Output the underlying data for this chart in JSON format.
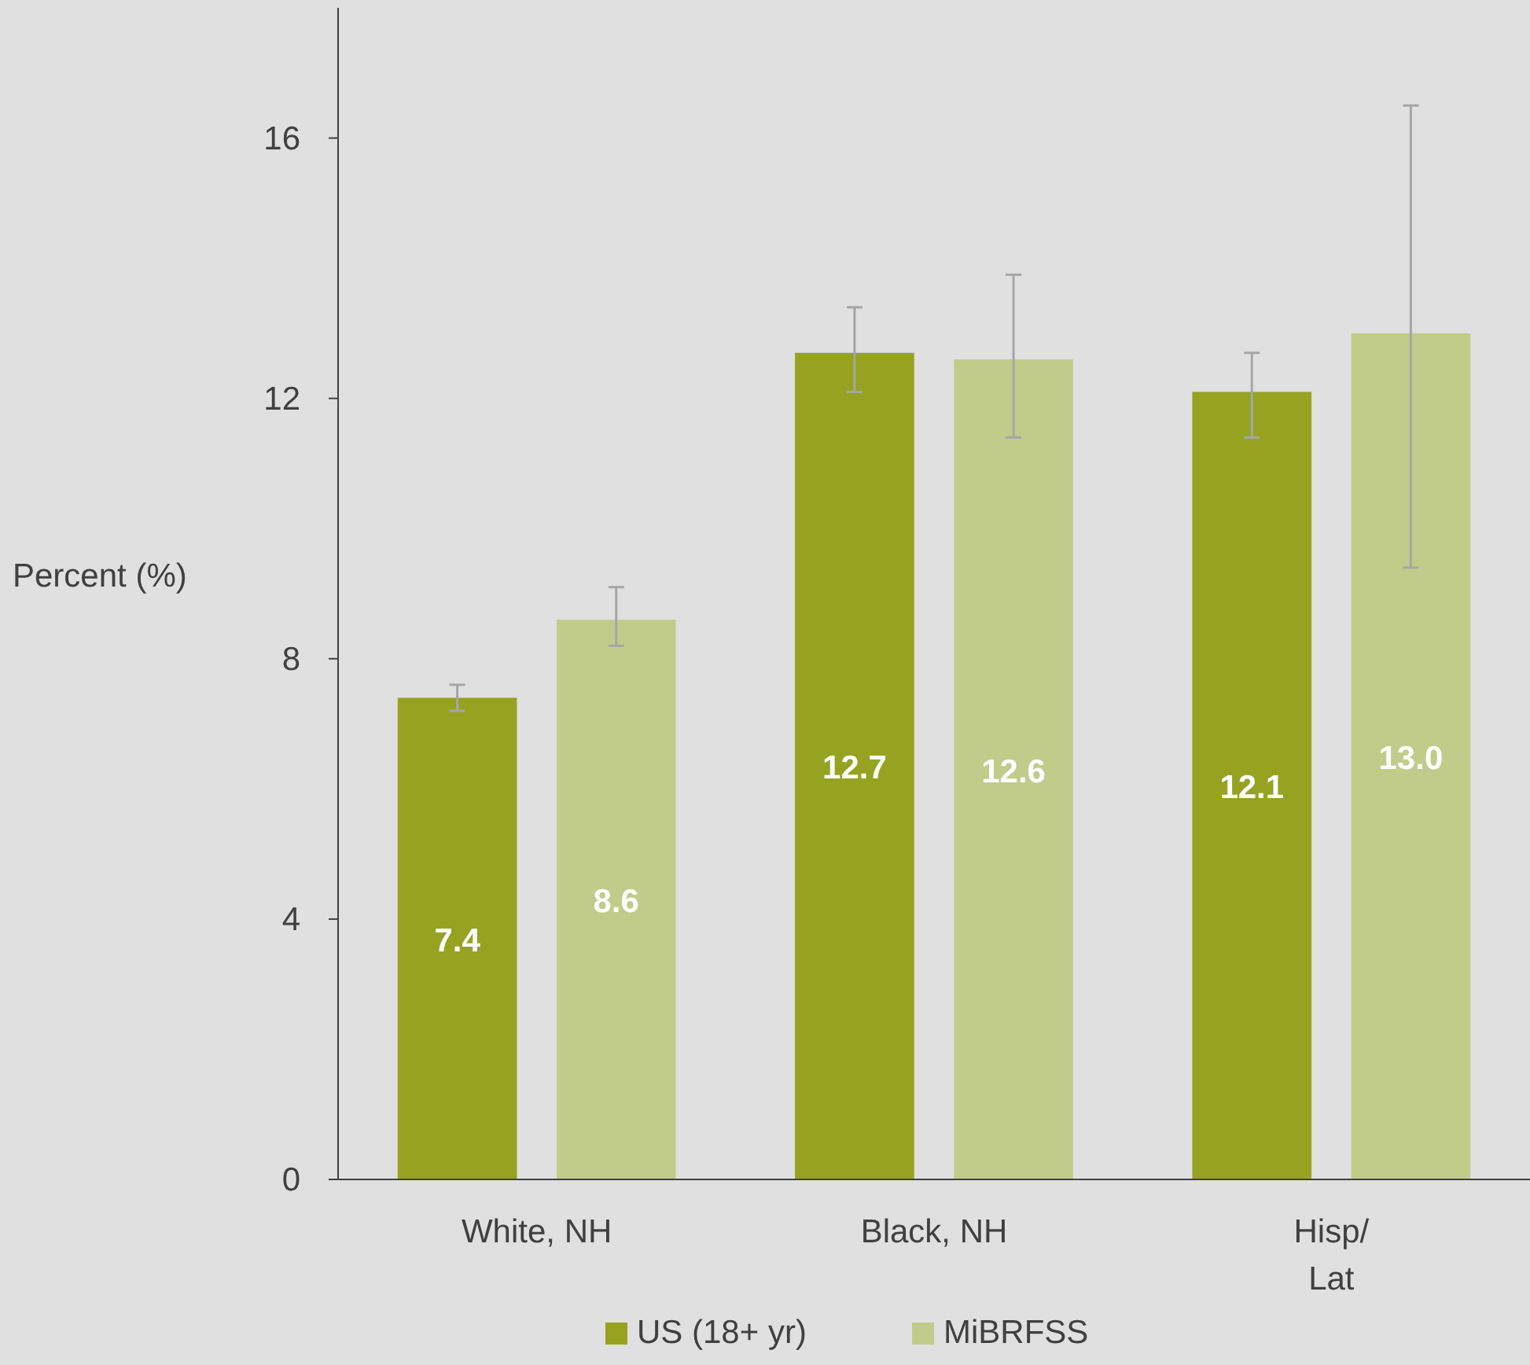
{
  "chart_data": {
    "type": "bar",
    "ylabel": "Percent (%)",
    "categories": [
      "White, NH",
      "Black, NH",
      "Hisp/\nLat"
    ],
    "series": [
      {
        "name": "US (18+ yr)",
        "color": "#95a321",
        "values": [
          7.4,
          12.7,
          12.1
        ],
        "value_labels": [
          "7.4",
          "12.7",
          "12.1"
        ],
        "errors": [
          [
            7.2,
            7.6
          ],
          [
            12.1,
            13.4
          ],
          [
            11.4,
            12.7
          ]
        ]
      },
      {
        "name": "MiBRFSS",
        "color": "#c1cc8a",
        "values": [
          8.6,
          12.6,
          13.0
        ],
        "value_labels": [
          "8.6",
          "12.6",
          "13.0"
        ],
        "errors": [
          [
            8.2,
            9.1
          ],
          [
            11.4,
            13.9
          ],
          [
            9.4,
            16.5
          ]
        ]
      }
    ],
    "ylim": [
      0,
      18
    ],
    "yticks": [
      0,
      4,
      8,
      12,
      16
    ],
    "legend": "bottom",
    "grid": false
  }
}
